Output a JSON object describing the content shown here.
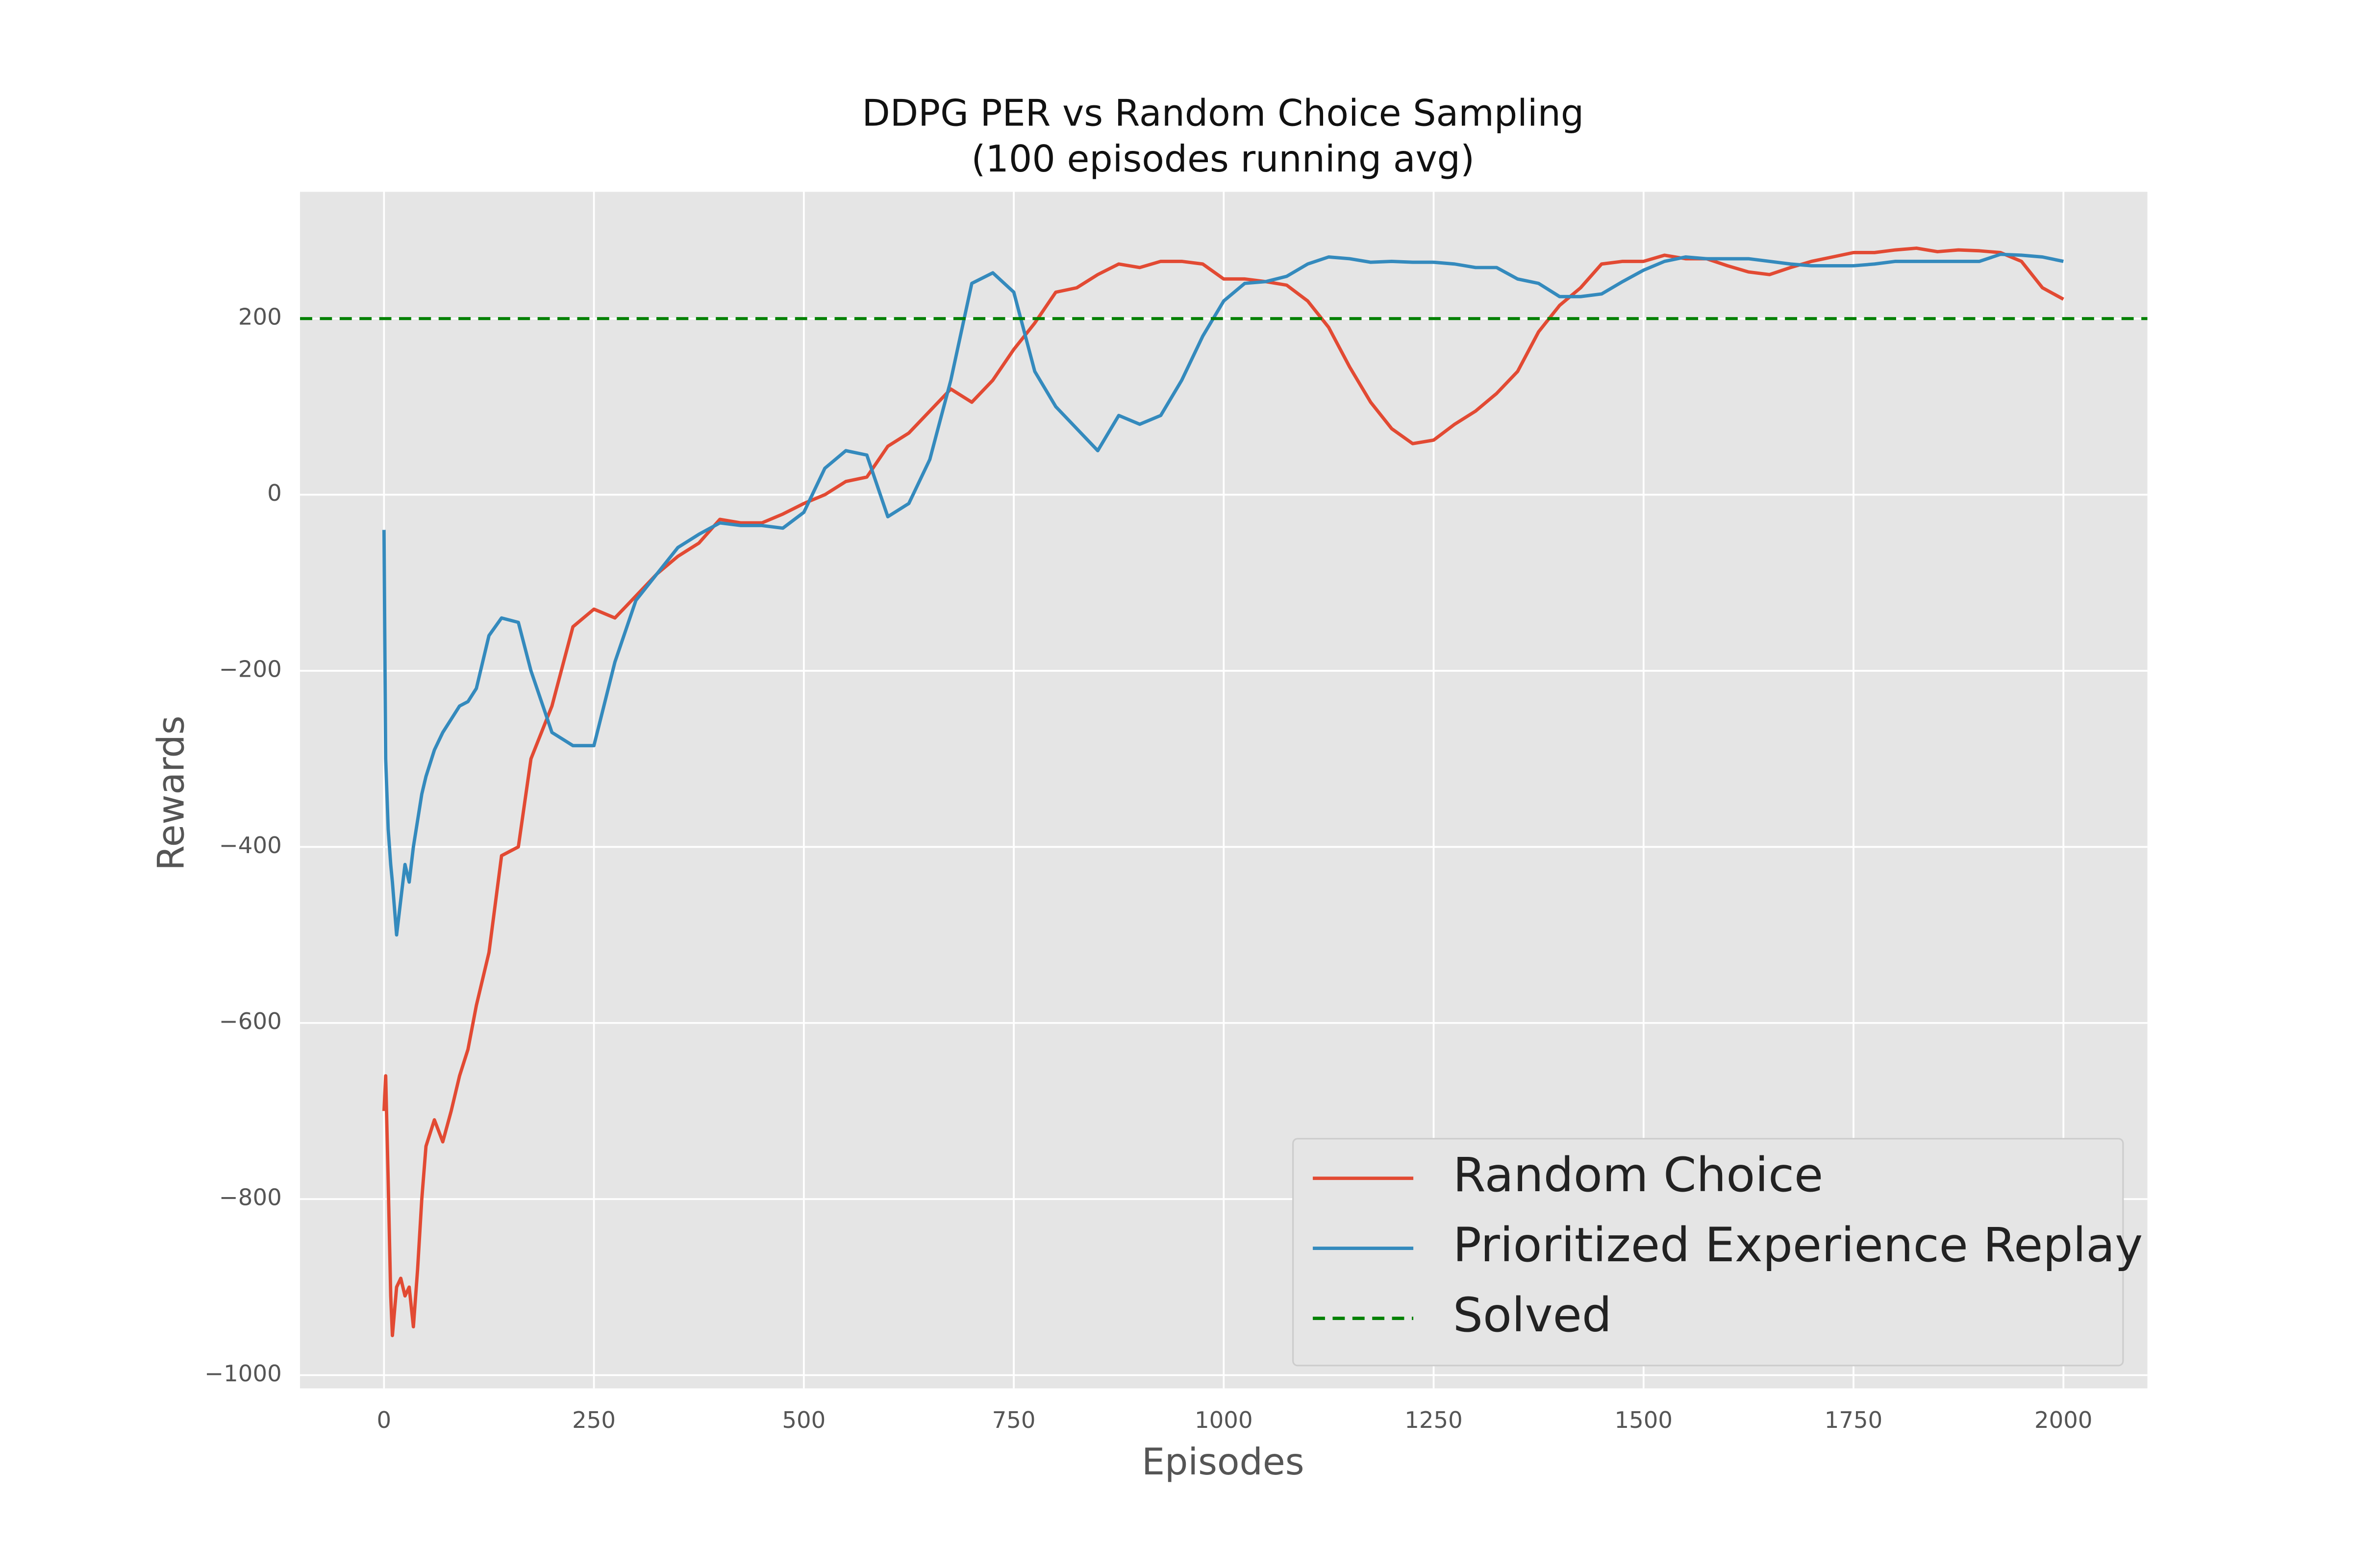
{
  "chart_data": {
    "type": "line",
    "title": "DDPG PER vs Random Choice Sampling",
    "subtitle": "(100 episodes running avg)",
    "x_label": "Episodes",
    "y_label": "Rewards",
    "x": [
      0,
      2,
      5,
      8,
      10,
      15,
      20,
      25,
      30,
      35,
      40,
      45,
      50,
      60,
      70,
      80,
      90,
      100,
      110,
      125,
      140,
      160,
      175,
      200,
      225,
      250,
      275,
      300,
      325,
      350,
      375,
      400,
      425,
      450,
      475,
      500,
      525,
      550,
      575,
      600,
      625,
      650,
      675,
      700,
      725,
      750,
      775,
      800,
      825,
      850,
      875,
      900,
      925,
      950,
      975,
      1000,
      1025,
      1050,
      1075,
      1100,
      1125,
      1150,
      1175,
      1200,
      1225,
      1250,
      1275,
      1300,
      1325,
      1350,
      1375,
      1400,
      1425,
      1450,
      1475,
      1500,
      1525,
      1550,
      1575,
      1600,
      1625,
      1650,
      1675,
      1700,
      1725,
      1750,
      1775,
      1800,
      1825,
      1850,
      1875,
      1900,
      1925,
      1950,
      1975,
      2000
    ],
    "series": [
      {
        "name": "Random Choice",
        "color": "#e24a33",
        "values": [
          -700,
          -660,
          -780,
          -910,
          -955,
          -900,
          -890,
          -910,
          -900,
          -945,
          -880,
          -800,
          -740,
          -710,
          -735,
          -700,
          -660,
          -630,
          -580,
          -520,
          -410,
          -400,
          -300,
          -240,
          -150,
          -130,
          -140,
          -115,
          -90,
          -70,
          -55,
          -28,
          -32,
          -32,
          -22,
          -10,
          0,
          15,
          20,
          55,
          70,
          95,
          120,
          105,
          130,
          165,
          195,
          230,
          235,
          250,
          262,
          258,
          265,
          265,
          262,
          245,
          245,
          242,
          238,
          220,
          190,
          145,
          105,
          75,
          58,
          62,
          80,
          95,
          115,
          140,
          185,
          215,
          235,
          262,
          265,
          265,
          272,
          268,
          268,
          260,
          253,
          250,
          258,
          265,
          270,
          275,
          275,
          278,
          280,
          276,
          278,
          277,
          275,
          265,
          235,
          222
        ]
      },
      {
        "name": "Prioritized Experience Replay",
        "color": "#348abd",
        "values": [
          -40,
          -300,
          -380,
          -420,
          -440,
          -500,
          -460,
          -420,
          -440,
          -400,
          -370,
          -340,
          -320,
          -290,
          -270,
          -255,
          -240,
          -235,
          -220,
          -160,
          -140,
          -145,
          -200,
          -270,
          -285,
          -285,
          -190,
          -120,
          -90,
          -60,
          -45,
          -32,
          -35,
          -35,
          -38,
          -20,
          30,
          50,
          45,
          -25,
          -10,
          40,
          130,
          240,
          252,
          230,
          140,
          100,
          75,
          50,
          90,
          80,
          90,
          130,
          180,
          220,
          240,
          242,
          248,
          262,
          270,
          268,
          264,
          265,
          264,
          264,
          262,
          258,
          258,
          245,
          240,
          225,
          225,
          228,
          242,
          255,
          265,
          270,
          268,
          268,
          268,
          265,
          262,
          260,
          260,
          260,
          262,
          265,
          265,
          265,
          265,
          265,
          273,
          272,
          270,
          265
        ]
      }
    ],
    "hline": {
      "name": "Solved",
      "value": 200,
      "color": "#008000",
      "dashed": true
    },
    "xlim": [
      -100,
      2100
    ],
    "ylim": [
      -1015,
      344
    ],
    "xticks": [
      0,
      250,
      500,
      750,
      1000,
      1250,
      1500,
      1750,
      2000
    ],
    "yticks": [
      {
        "value": -1000,
        "label": "−1000"
      },
      {
        "value": -800,
        "label": "−800"
      },
      {
        "value": -600,
        "label": "−600"
      },
      {
        "value": -400,
        "label": "−400"
      },
      {
        "value": -200,
        "label": "−200"
      },
      0,
      200
    ],
    "grid": true,
    "legend": "lower right"
  }
}
